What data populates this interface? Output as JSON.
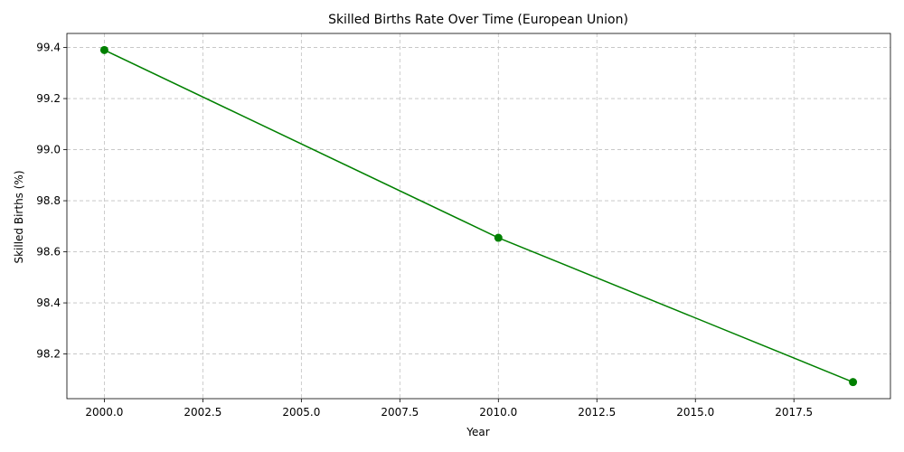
{
  "chart_data": {
    "type": "line",
    "title": "Skilled Births Rate Over Time (European Union)",
    "xlabel": "Year",
    "ylabel": "Skilled Births (%)",
    "x": [
      2000,
      2010,
      2019
    ],
    "series": [
      {
        "values": [
          99.39,
          98.655,
          98.09
        ],
        "color": "#008000",
        "marker": "circle"
      }
    ],
    "xlim": [
      1999.05,
      2019.95
    ],
    "ylim": [
      98.025,
      99.455
    ],
    "xticks": [
      2000.0,
      2002.5,
      2005.0,
      2007.5,
      2010.0,
      2012.5,
      2015.0,
      2017.5
    ],
    "xtick_labels": [
      "2000.0",
      "2002.5",
      "2005.0",
      "2007.5",
      "2010.0",
      "2012.5",
      "2015.0",
      "2017.5"
    ],
    "yticks": [
      98.2,
      98.4,
      98.6,
      98.8,
      99.0,
      99.2,
      99.4
    ],
    "ytick_labels": [
      "98.2",
      "98.4",
      "98.6",
      "98.8",
      "99.0",
      "99.2",
      "99.4"
    ],
    "grid": true,
    "grid_color": "#c0c0c0",
    "legend": "none"
  }
}
